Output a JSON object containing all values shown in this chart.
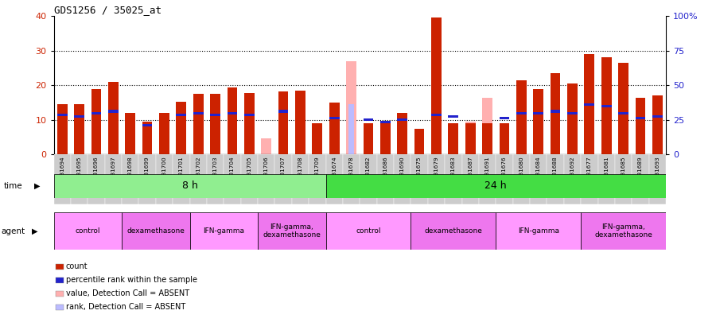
{
  "title": "GDS1256 / 35025_at",
  "samples": [
    "GSM31694",
    "GSM31695",
    "GSM31696",
    "GSM31697",
    "GSM31698",
    "GSM31699",
    "GSM31700",
    "GSM31701",
    "GSM31702",
    "GSM31703",
    "GSM31704",
    "GSM31705",
    "GSM31706",
    "GSM31707",
    "GSM31708",
    "GSM31709",
    "GSM31674",
    "GSM31678",
    "GSM31682",
    "GSM31686",
    "GSM31690",
    "GSM31675",
    "GSM31679",
    "GSM31683",
    "GSM31687",
    "GSM31691",
    "GSM31676",
    "GSM31680",
    "GSM31684",
    "GSM31688",
    "GSM31692",
    "GSM31677",
    "GSM31681",
    "GSM31685",
    "GSM31689",
    "GSM31693"
  ],
  "red_values": [
    14.5,
    14.5,
    19.0,
    21.0,
    12.0,
    9.5,
    12.0,
    15.2,
    17.5,
    17.5,
    19.5,
    17.8,
    0,
    18.2,
    18.5,
    9.0,
    15.0,
    0,
    9.0,
    9.5,
    12.0,
    7.5,
    39.5,
    9.0,
    9.0,
    9.0,
    9.0,
    21.5,
    19.0,
    23.5,
    20.5,
    29.0,
    28.0,
    26.5,
    16.5,
    17.0
  ],
  "blue_values": [
    11.5,
    11.0,
    12.0,
    12.5,
    0,
    8.5,
    0,
    11.5,
    12.0,
    11.5,
    12.0,
    11.5,
    0,
    12.5,
    0,
    0,
    10.5,
    0,
    10.0,
    9.5,
    10.0,
    0,
    11.5,
    11.0,
    0,
    0,
    10.5,
    12.0,
    12.0,
    12.5,
    12.0,
    14.5,
    14.0,
    12.0,
    10.5,
    11.0
  ],
  "pink_values": [
    0,
    0,
    0,
    0,
    0,
    0,
    0,
    0,
    0,
    0,
    0,
    0,
    4.8,
    0,
    8.0,
    8.5,
    14.5,
    27.0,
    0,
    9.0,
    0,
    7.5,
    0,
    9.0,
    9.5,
    16.5,
    0,
    0,
    0,
    0,
    0,
    0,
    15.0,
    0,
    16.5,
    0
  ],
  "lavender_values": [
    0,
    0,
    0,
    0,
    0,
    0,
    0,
    0,
    0,
    0,
    0,
    0,
    0,
    0,
    0,
    0,
    0,
    14.5,
    0,
    9.5,
    0,
    0,
    0,
    0,
    0,
    8.0,
    0,
    0,
    0,
    0,
    0,
    0,
    10.5,
    0,
    10.0,
    0
  ],
  "time_groups": [
    {
      "label": "8 h",
      "start": 0,
      "end": 16,
      "color": "#90EE90"
    },
    {
      "label": "24 h",
      "start": 16,
      "end": 36,
      "color": "#44DD44"
    }
  ],
  "agent_groups": [
    {
      "label": "control",
      "start": 0,
      "end": 4,
      "color": "#FF99FF"
    },
    {
      "label": "dexamethasone",
      "start": 4,
      "end": 8,
      "color": "#EE77EE"
    },
    {
      "label": "IFN-gamma",
      "start": 8,
      "end": 12,
      "color": "#FF99FF"
    },
    {
      "label": "IFN-gamma,\ndexamethasone",
      "start": 12,
      "end": 16,
      "color": "#EE77EE"
    },
    {
      "label": "control",
      "start": 16,
      "end": 21,
      "color": "#FF99FF"
    },
    {
      "label": "dexamethasone",
      "start": 21,
      "end": 26,
      "color": "#EE77EE"
    },
    {
      "label": "IFN-gamma",
      "start": 26,
      "end": 31,
      "color": "#FF99FF"
    },
    {
      "label": "IFN-gamma,\ndexamethasone",
      "start": 31,
      "end": 36,
      "color": "#EE77EE"
    }
  ],
  "ylim_left": [
    0,
    40
  ],
  "ylim_right": [
    0,
    100
  ],
  "yticks_left": [
    0,
    10,
    20,
    30,
    40
  ],
  "ytick_labels_right": [
    "0",
    "25",
    "50",
    "75",
    "100%"
  ],
  "grid_values": [
    10,
    20,
    30
  ],
  "bar_width": 0.6,
  "legend_items": [
    {
      "label": "count",
      "color": "#CC2200"
    },
    {
      "label": "percentile rank within the sample",
      "color": "#2222CC"
    },
    {
      "label": "value, Detection Call = ABSENT",
      "color": "#FFB0B0"
    },
    {
      "label": "rank, Detection Call = ABSENT",
      "color": "#BBBBFF"
    }
  ]
}
